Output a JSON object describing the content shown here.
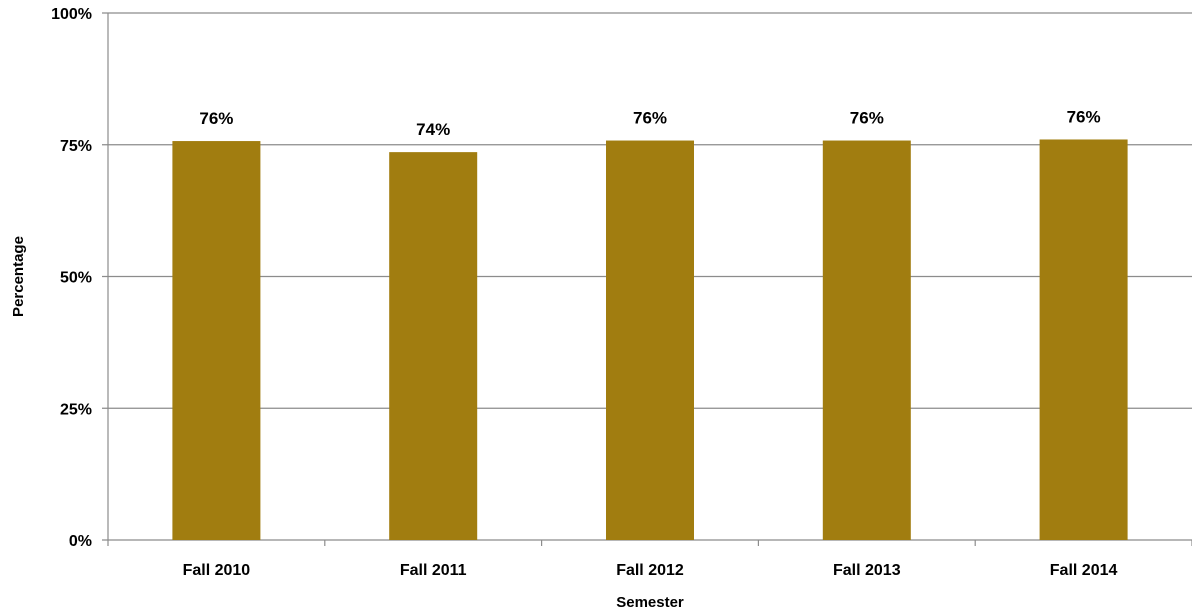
{
  "chart_data": {
    "type": "bar",
    "categories": [
      "Fall 2010",
      "Fall 2011",
      "Fall 2012",
      "Fall 2013",
      "Fall 2014"
    ],
    "values": [
      75.7,
      73.6,
      75.8,
      75.8,
      76.0
    ],
    "data_labels": [
      "76%",
      "74%",
      "76%",
      "76%",
      "76%"
    ],
    "title": "",
    "xlabel": "Semester",
    "ylabel": "Percentage",
    "ylim": [
      0,
      100
    ],
    "yticks": [
      0,
      25,
      50,
      75,
      100
    ],
    "ytick_labels": [
      "0%",
      "25%",
      "50%",
      "75%",
      "100%"
    ],
    "grid": true,
    "legend": "none",
    "colors": {
      "bar": "#A17D10",
      "grid": "#8c8c8c",
      "axis": "#8c8c8c"
    }
  }
}
